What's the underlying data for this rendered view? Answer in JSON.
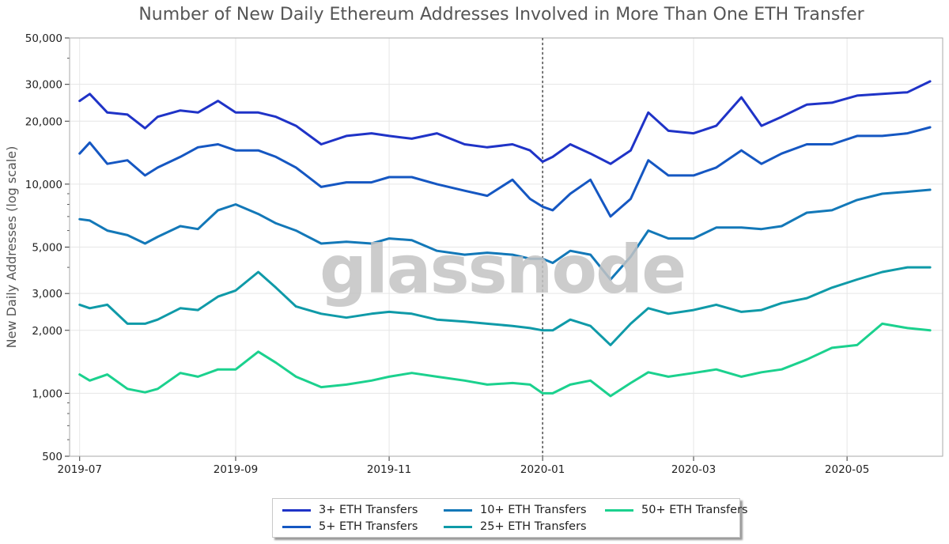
{
  "chart_data": {
    "type": "line",
    "title": "Number of New Daily Ethereum Addresses Involved in More Than One ETH Transfer",
    "xlabel": "",
    "ylabel": "New Daily Addresses (log scale)",
    "y_scale": "log",
    "ylim": [
      500,
      50000
    ],
    "xlim": [
      "2019-06-27",
      "2020-06-08"
    ],
    "y_ticks": [
      500,
      1000,
      2000,
      3000,
      5000,
      10000,
      20000,
      30000,
      50000
    ],
    "y_tick_labels": [
      "500",
      "1,000",
      "2,000",
      "3,000",
      "5,000",
      "10,000",
      "20,000",
      "30,000",
      "50,000"
    ],
    "x_ticks": [
      "2019-07-01",
      "2019-09-01",
      "2019-11-01",
      "2020-01-01",
      "2020-03-01",
      "2020-05-01"
    ],
    "x_tick_labels": [
      "2019-07",
      "2019-09",
      "2019-11",
      "2020-01",
      "2020-03",
      "2020-05"
    ],
    "grid": true,
    "vertical_marker": "2020-01-01",
    "legend_position": "bottom-center",
    "watermark": "glassnode",
    "x": [
      "2019-07-01",
      "2019-07-05",
      "2019-07-12",
      "2019-07-20",
      "2019-07-27",
      "2019-08-01",
      "2019-08-10",
      "2019-08-17",
      "2019-08-25",
      "2019-09-01",
      "2019-09-10",
      "2019-09-17",
      "2019-09-25",
      "2019-10-05",
      "2019-10-15",
      "2019-10-25",
      "2019-11-01",
      "2019-11-10",
      "2019-11-20",
      "2019-12-01",
      "2019-12-10",
      "2019-12-20",
      "2019-12-27",
      "2020-01-01",
      "2020-01-05",
      "2020-01-12",
      "2020-01-20",
      "2020-01-28",
      "2020-02-05",
      "2020-02-12",
      "2020-02-20",
      "2020-03-01",
      "2020-03-10",
      "2020-03-20",
      "2020-03-28",
      "2020-04-05",
      "2020-04-15",
      "2020-04-25",
      "2020-05-05",
      "2020-05-15",
      "2020-05-25",
      "2020-06-03"
    ],
    "series": [
      {
        "name": "3+ ETH Transfers",
        "color": "#1f33c7",
        "values": [
          25000,
          27000,
          22000,
          21500,
          18500,
          21000,
          22500,
          22000,
          25000,
          22000,
          22000,
          21000,
          19000,
          15500,
          17000,
          17500,
          17000,
          16500,
          17500,
          15500,
          15000,
          15500,
          14500,
          12800,
          13500,
          15500,
          14000,
          12500,
          14500,
          22000,
          18000,
          17500,
          19000,
          26000,
          19000,
          21000,
          24000,
          24500,
          26500,
          27000,
          27500,
          31000
        ]
      },
      {
        "name": "5+ ETH Transfers",
        "color": "#1557c2",
        "values": [
          14000,
          15800,
          12500,
          13000,
          11000,
          12000,
          13500,
          15000,
          15500,
          14500,
          14500,
          13500,
          12000,
          9700,
          10200,
          10200,
          10800,
          10800,
          10000,
          9300,
          8800,
          10500,
          8500,
          7800,
          7500,
          9000,
          10500,
          7000,
          8500,
          13000,
          11000,
          11000,
          12000,
          14500,
          12500,
          14000,
          15500,
          15500,
          17000,
          17000,
          17500,
          18700
        ]
      },
      {
        "name": "10+ ETH Transfers",
        "color": "#1378b8",
        "values": [
          6800,
          6700,
          6000,
          5700,
          5200,
          5600,
          6300,
          6100,
          7500,
          8000,
          7200,
          6500,
          6000,
          5200,
          5300,
          5200,
          5500,
          5400,
          4800,
          4600,
          4700,
          4600,
          4400,
          4400,
          4200,
          4800,
          4600,
          3500,
          4500,
          6000,
          5500,
          5500,
          6200,
          6200,
          6100,
          6300,
          7300,
          7500,
          8400,
          9000,
          9200,
          9400
        ]
      },
      {
        "name": "25+ ETH Transfers",
        "color": "#0f9aa8",
        "values": [
          2650,
          2550,
          2650,
          2150,
          2150,
          2250,
          2550,
          2500,
          2900,
          3100,
          3800,
          3200,
          2600,
          2400,
          2300,
          2400,
          2450,
          2400,
          2250,
          2200,
          2150,
          2100,
          2050,
          2000,
          2000,
          2250,
          2100,
          1700,
          2150,
          2550,
          2400,
          2500,
          2650,
          2450,
          2500,
          2700,
          2850,
          3200,
          3500,
          3800,
          4000,
          4000
        ]
      },
      {
        "name": "50+ ETH Transfers",
        "color": "#1bd18e",
        "values": [
          1230,
          1150,
          1230,
          1050,
          1010,
          1050,
          1250,
          1200,
          1300,
          1300,
          1580,
          1400,
          1200,
          1070,
          1100,
          1150,
          1200,
          1250,
          1200,
          1150,
          1100,
          1120,
          1100,
          1000,
          1000,
          1100,
          1150,
          970,
          1120,
          1260,
          1200,
          1250,
          1300,
          1200,
          1260,
          1300,
          1450,
          1650,
          1700,
          2150,
          2050,
          2000
        ]
      }
    ]
  }
}
